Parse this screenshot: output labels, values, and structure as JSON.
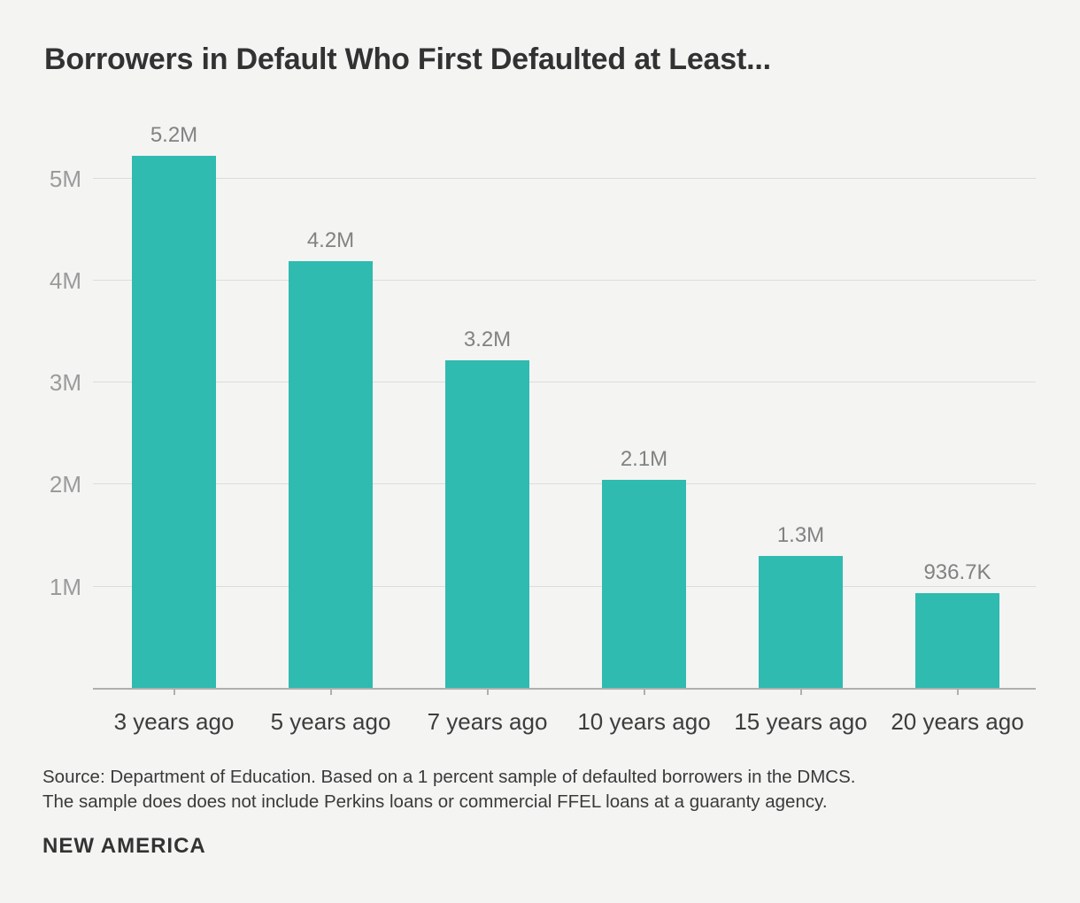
{
  "header": {
    "title": "Borrowers in Default Who First Defaulted at Least..."
  },
  "chart_data": {
    "type": "bar",
    "title": "Borrowers in Default Who First Defaulted at Least...",
    "categories": [
      "3 years ago",
      "5 years ago",
      "7 years ago",
      "10 years ago",
      "15 years ago",
      "20 years ago"
    ],
    "values": [
      5220000,
      4190000,
      3220000,
      2050000,
      1300000,
      936700
    ],
    "value_labels": [
      "5.2M",
      "4.2M",
      "3.2M",
      "2.1M",
      "1.3M",
      "936.7K"
    ],
    "yticks": [
      {
        "label": "1M",
        "value": 1000000
      },
      {
        "label": "2M",
        "value": 2000000
      },
      {
        "label": "3M",
        "value": 3000000
      },
      {
        "label": "4M",
        "value": 4000000
      },
      {
        "label": "5M",
        "value": 5000000
      }
    ],
    "ylim": [
      0,
      5490000
    ],
    "xlabel": "",
    "ylabel": "",
    "grid": true,
    "legend": "none",
    "colors": {
      "bar": "#2fbbb0",
      "background": "#f4f4f3",
      "gridline": "#dcdcdc",
      "baseline": "#afafaf",
      "value_label": "#828282",
      "axis_tick_label": "#9b9b9b",
      "category_label": "#3d3d3d",
      "title": "#323232"
    }
  },
  "source": {
    "line1": "Source: Department of Education. Based on a 1 percent sample of defaulted borrowers in the DMCS.",
    "line2": "The sample does does not include Perkins loans or commercial FFEL loans at a guaranty agency."
  },
  "footer": {
    "brand": "NEW AMERICA"
  }
}
